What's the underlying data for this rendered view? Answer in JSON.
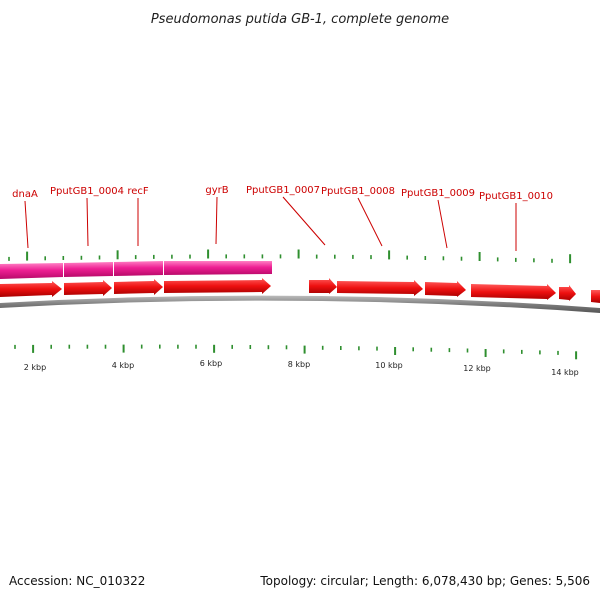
{
  "title": "Pseudomonas putida GB-1, complete genome",
  "footer": {
    "accession": "Accession: NC_010322",
    "summary": "Topology: circular; Length: 6,078,430 bp; Genes: 5,506"
  },
  "scale": {
    "unit_labels": [
      "2 kbp",
      "4 kbp",
      "6 kbp",
      "8 kbp",
      "10 kbp",
      "12 kbp",
      "14 kbp"
    ]
  },
  "genes": [
    {
      "label": "dnaA"
    },
    {
      "label": "PputGB1_0004"
    },
    {
      "label": "recF"
    },
    {
      "label": "gyrB"
    },
    {
      "label": "PputGB1_0007"
    },
    {
      "label": "PputGB1_0008"
    },
    {
      "label": "PputGB1_0009"
    },
    {
      "label": "PputGB1_0010"
    }
  ],
  "colors": {
    "cds": "#ee1111",
    "cds_dark": "#b00000",
    "gene_track": "#e8188a",
    "backbone": "#8a8a8a",
    "ticks": "#2f8f2f",
    "label": "#cc0000"
  }
}
